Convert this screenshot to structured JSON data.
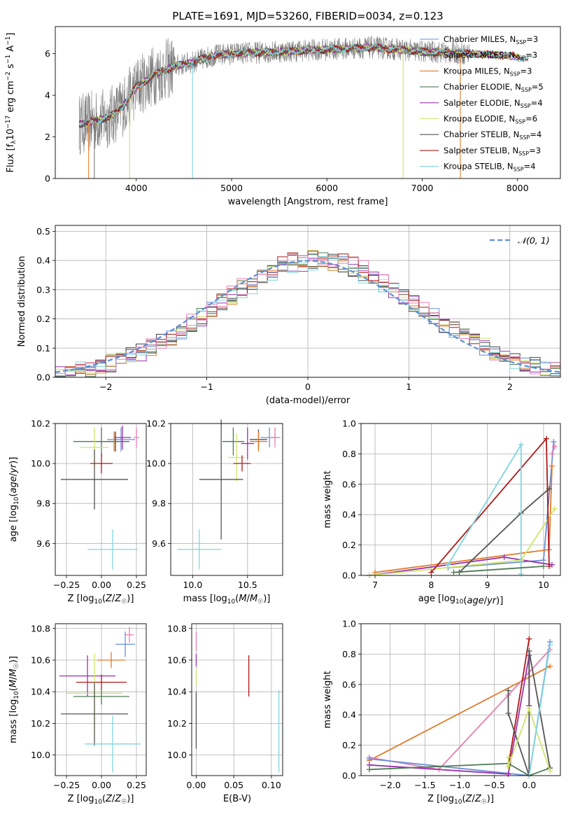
{
  "title": "PLATE=1691, MJD=53260, FIBERID=0034, z=0.123",
  "colors": {
    "Chabrier MILES": "#6a8fd8",
    "Salpeter MILES": "#404040",
    "Kroupa MILES": "#e07b2a",
    "Chabrier ELODIE": "#4f7a55",
    "Salpeter ELODIE": "#9b30b0",
    "Kroupa ELODIE": "#cfe56a",
    "Chabrier STELIB": "#555555",
    "Salpeter STELIB": "#b01818",
    "Kroupa STELIB": "#7fd6de",
    "extra": "#e67fb2",
    "gauss": "#5b8fd8",
    "grid": "#b0b0b0"
  },
  "chart_data": [
    {
      "id": "spectrum",
      "type": "line",
      "title": "PLATE=1691, MJD=53260, FIBERID=0034, z=0.123",
      "xlabel": "wavelength [Angstrom, rest frame]",
      "ylabel": "Flux [f_λ10^{-17} erg cm^{-2} s^{-1} A^{-1}]",
      "xlim": [
        3150,
        8450
      ],
      "ylim": [
        0,
        7.3
      ],
      "xticks": [
        "4000",
        "5000",
        "6000",
        "7000",
        "8000"
      ],
      "yticks": [
        "0",
        "2",
        "4",
        "6"
      ],
      "grid": false,
      "legend_position": "right",
      "legend": [
        {
          "model": "Chabrier MILES",
          "n": "3"
        },
        {
          "model": "Salpeter MILES",
          "n": "3"
        },
        {
          "model": "Kroupa MILES",
          "n": "3"
        },
        {
          "model": "Chabrier ELODIE",
          "n": "5"
        },
        {
          "model": "Salpeter ELODIE",
          "n": "4"
        },
        {
          "model": "Kroupa ELODIE",
          "n": "6"
        },
        {
          "model": "Chabrier STELIB",
          "n": "4"
        },
        {
          "model": "Salpeter STELIB",
          "n": "3"
        },
        {
          "model": "Kroupa STELIB",
          "n": "4"
        }
      ],
      "continuum": [
        [
          3400,
          2.6
        ],
        [
          3700,
          2.9
        ],
        [
          3800,
          3.2
        ],
        [
          3900,
          3.7
        ],
        [
          4000,
          4.4
        ],
        [
          4200,
          5.0
        ],
        [
          4400,
          5.4
        ],
        [
          4600,
          5.6
        ],
        [
          4800,
          5.9
        ],
        [
          5000,
          6.0
        ],
        [
          5500,
          6.1
        ],
        [
          6000,
          6.2
        ],
        [
          6500,
          6.3
        ],
        [
          7000,
          6.1
        ],
        [
          7500,
          6.0
        ],
        [
          7900,
          5.9
        ],
        [
          8200,
          5.7
        ]
      ],
      "absorption_lines": [
        [
          3500,
          0.9
        ],
        [
          3560,
          0.2
        ],
        [
          3930,
          0.5
        ],
        [
          4590,
          5.9
        ],
        [
          6800,
          6.0
        ],
        [
          7400,
          3.5
        ]
      ]
    },
    {
      "id": "residuals",
      "type": "histogram",
      "xlabel": "(data-model)/error",
      "ylabel": "Normed distribution",
      "xlim": [
        -2.5,
        2.5
      ],
      "ylim": [
        0,
        0.52
      ],
      "xticks": [
        "−2",
        "−1",
        "0",
        "1",
        "2"
      ],
      "yticks": [
        "0.0",
        "0.1",
        "0.2",
        "0.3",
        "0.4",
        "0.5"
      ],
      "grid": true,
      "legend_position": "top-right",
      "legend": [
        "𝒩(0, 1)"
      ],
      "bin_width": 0.1
    },
    {
      "id": "age-vs-Z",
      "type": "errorbar",
      "xlabel": "Z [log₁₀(Z/Z☉)]",
      "ylabel": "age  [log₁₀(age/yr)]",
      "xlim": [
        -0.33,
        0.32
      ],
      "ylim": [
        9.44,
        10.2
      ],
      "xticks": [
        "−0.25",
        "0.00",
        "0.25"
      ],
      "yticks": [
        "9.6",
        "9.8",
        "10.0",
        "10.2"
      ],
      "grid": true,
      "points": [
        {
          "model": "Chabrier MILES",
          "x": 0.14,
          "y": 10.12,
          "xerr": 0.1,
          "yerr": 0.06
        },
        {
          "model": "Salpeter MILES",
          "x": 0.1,
          "y": 10.11,
          "xerr": 0.07,
          "yerr": 0.05
        },
        {
          "model": "Kroupa MILES",
          "x": 0.09,
          "y": 10.11,
          "xerr": 0.1,
          "yerr": 0.05
        },
        {
          "model": "Chabrier ELODIE",
          "x": 0.0,
          "y": 10.11,
          "xerr": 0.2,
          "yerr": 0.07
        },
        {
          "model": "Salpeter ELODIE",
          "x": 0.15,
          "y": 10.13,
          "xerr": 0.06,
          "yerr": 0.06
        },
        {
          "model": "Kroupa ELODIE",
          "x": -0.05,
          "y": 10.08,
          "xerr": 0.1,
          "yerr": 0.1
        },
        {
          "model": "Chabrier STELIB",
          "x": -0.05,
          "y": 9.92,
          "xerr": 0.24,
          "yerr": 0.15
        },
        {
          "model": "Salpeter STELIB",
          "x": 0.0,
          "y": 10.0,
          "xerr": 0.08,
          "yerr": 0.05
        },
        {
          "model": "Kroupa STELIB",
          "x": 0.08,
          "y": 9.57,
          "xerr": 0.18,
          "yerr": 0.1
        },
        {
          "model": "extra",
          "x": 0.25,
          "y": 10.13,
          "xerr": 0.02,
          "yerr": 0.05
        }
      ]
    },
    {
      "id": "age-vs-mass",
      "type": "errorbar",
      "xlabel": "mass [log₁₀(M/M☉)]",
      "ylabel": "",
      "xlim": [
        9.8,
        10.82
      ],
      "ylim": [
        9.44,
        10.2
      ],
      "xticks": [
        "10.0",
        "10.5"
      ],
      "yticks": [
        "9.6",
        "9.8",
        "10.0",
        "10.2"
      ],
      "grid": true,
      "points": [
        {
          "model": "Chabrier MILES",
          "x": 10.7,
          "y": 10.13,
          "xerr": 0.08,
          "yerr": 0.05
        },
        {
          "model": "Salpeter MILES",
          "x": 10.6,
          "y": 10.12,
          "xerr": 0.08,
          "yerr": 0.05
        },
        {
          "model": "Kroupa MILES",
          "x": 10.6,
          "y": 10.11,
          "xerr": 0.08,
          "yerr": 0.05
        },
        {
          "model": "Chabrier ELODIE",
          "x": 10.37,
          "y": 10.11,
          "xerr": 0.1,
          "yerr": 0.07
        },
        {
          "model": "Salpeter ELODIE",
          "x": 10.5,
          "y": 10.1,
          "xerr": 0.06,
          "yerr": 0.08
        },
        {
          "model": "Kroupa ELODIE",
          "x": 10.4,
          "y": 10.03,
          "xerr": 0.08,
          "yerr": 0.12
        },
        {
          "model": "Chabrier STELIB",
          "x": 10.26,
          "y": 9.92,
          "xerr": 0.2,
          "yerr": 0.3
        },
        {
          "model": "Salpeter STELIB",
          "x": 10.45,
          "y": 10.0,
          "xerr": 0.08,
          "yerr": 0.04
        },
        {
          "model": "Kroupa STELIB",
          "x": 10.06,
          "y": 9.57,
          "xerr": 0.2,
          "yerr": 0.1
        },
        {
          "model": "extra",
          "x": 10.75,
          "y": 10.13,
          "xerr": 0.05,
          "yerr": 0.05
        }
      ]
    },
    {
      "id": "weight-vs-age",
      "type": "line",
      "xlabel": "age  [log₁₀(age/yr)]",
      "ylabel": "mass weight",
      "xlim": [
        6.75,
        10.3
      ],
      "ylim": [
        0,
        1.0
      ],
      "xticks": [
        "7",
        "8",
        "9",
        "10"
      ],
      "yticks": [
        "0.0",
        "0.2",
        "0.4",
        "0.6",
        "0.8",
        "1.0"
      ],
      "grid": true,
      "series": [
        {
          "model": "Chabrier MILES",
          "points": [
            [
              8.3,
              0.05
            ],
            [
              10.0,
              0.1
            ],
            [
              10.18,
              0.88
            ]
          ]
        },
        {
          "model": "Kroupa MILES",
          "points": [
            [
              7.0,
              0.02
            ],
            [
              10.1,
              0.17
            ],
            [
              10.15,
              0.72
            ]
          ]
        },
        {
          "model": "Salpeter ELODIE",
          "points": [
            [
              6.9,
              0.0
            ],
            [
              9.3,
              0.12
            ],
            [
              10.15,
              0.07
            ]
          ]
        },
        {
          "model": "Kroupa ELODIE",
          "points": [
            [
              6.9,
              0.0
            ],
            [
              9.6,
              0.1
            ],
            [
              10.2,
              0.44
            ]
          ]
        },
        {
          "model": "Chabrier STELIB",
          "points": [
            [
              8.5,
              0.02
            ],
            [
              9.6,
              0.41
            ],
            [
              10.1,
              0.57
            ]
          ]
        },
        {
          "model": "Salpeter STELIB",
          "points": [
            [
              8.0,
              0.02
            ],
            [
              10.05,
              0.9
            ],
            [
              10.1,
              0.06
            ]
          ]
        },
        {
          "model": "Kroupa STELIB",
          "points": [
            [
              8.3,
              0.07
            ],
            [
              9.6,
              0.86
            ],
            [
              9.6,
              0.01
            ]
          ]
        },
        {
          "model": "Chabrier ELODIE",
          "points": [
            [
              8.4,
              0.02
            ],
            [
              10.0,
              0.06
            ]
          ]
        },
        {
          "model": "extra",
          "points": [
            [
              10.2,
              0.85
            ],
            [
              10.15,
              0.8
            ]
          ]
        }
      ]
    },
    {
      "id": "mass-vs-Z",
      "type": "errorbar",
      "xlabel": "Z [log₁₀(Z/Z☉)]",
      "ylabel": "mass [log₁₀(M/M☉)]",
      "xlim": [
        -0.33,
        0.32
      ],
      "ylim": [
        9.87,
        10.83
      ],
      "xticks": [
        "−0.25",
        "0.00",
        "0.25"
      ],
      "yticks": [
        "10.0",
        "10.2",
        "10.4",
        "10.6",
        "10.8"
      ],
      "grid": true,
      "points": [
        {
          "model": "extra",
          "x": 0.2,
          "y": 10.76,
          "xerr": 0.03,
          "yerr": 0.05
        },
        {
          "model": "Chabrier MILES",
          "x": 0.17,
          "y": 10.7,
          "xerr": 0.07,
          "yerr": 0.08
        },
        {
          "model": "Kroupa MILES",
          "x": 0.07,
          "y": 10.6,
          "xerr": 0.1,
          "yerr": 0.05
        },
        {
          "model": "Salpeter ELODIE",
          "x": -0.1,
          "y": 10.5,
          "xerr": 0.2,
          "yerr": 0.13
        },
        {
          "model": "Salpeter STELIB",
          "x": 0.0,
          "y": 10.46,
          "xerr": 0.18,
          "yerr": 0.05
        },
        {
          "model": "Kroupa ELODIE",
          "x": -0.05,
          "y": 10.39,
          "xerr": 0.2,
          "yerr": 0.25
        },
        {
          "model": "Chabrier ELODIE",
          "x": 0.0,
          "y": 10.37,
          "xerr": 0.2,
          "yerr": 0.05
        },
        {
          "model": "Chabrier STELIB",
          "x": -0.05,
          "y": 10.26,
          "xerr": 0.24,
          "yerr": 0.2
        },
        {
          "model": "Kroupa STELIB",
          "x": 0.08,
          "y": 10.07,
          "xerr": 0.2,
          "yerr": 0.18
        }
      ]
    },
    {
      "id": "mass-vs-EBV",
      "type": "errorbar",
      "xlabel": "E(B-V)",
      "ylabel": "",
      "xlim": [
        -0.006,
        0.115
      ],
      "ylim": [
        9.87,
        10.83
      ],
      "xticks": [
        "0.00",
        "0.05",
        "0.10"
      ],
      "yticks": [
        "10.0",
        "10.2",
        "10.4",
        "10.6",
        "10.8"
      ],
      "grid": true,
      "points": [
        {
          "model": "extra",
          "x": 0.0,
          "y": 10.72,
          "xerr": 0,
          "yerr": 0.06
        },
        {
          "model": "Salpeter ELODIE",
          "x": 0.0,
          "y": 10.6,
          "xerr": 0,
          "yerr": 0.04
        },
        {
          "model": "Kroupa ELODIE",
          "x": 0.0,
          "y": 10.49,
          "xerr": 0,
          "yerr": 0.05
        },
        {
          "model": "Chabrier STELIB",
          "x": 0.0,
          "y": 10.22,
          "xerr": 0,
          "yerr": 0.18
        },
        {
          "model": "Salpeter STELIB",
          "x": 0.07,
          "y": 10.5,
          "xerr": 0,
          "yerr": 0.13
        },
        {
          "model": "Kroupa STELIB",
          "x": 0.11,
          "y": 10.15,
          "xerr": 0,
          "yerr": 0.26
        }
      ]
    },
    {
      "id": "weight-vs-Z",
      "type": "line",
      "xlabel": "Z [log₁₀(Z/Z☉)]",
      "ylabel": "mass weight",
      "xlim": [
        -2.42,
        0.45
      ],
      "ylim": [
        0,
        1.0
      ],
      "xticks": [
        "−2.0",
        "−1.5",
        "−1.0",
        "−0.5",
        "0.0"
      ],
      "yticks": [
        "0.0",
        "0.2",
        "0.4",
        "0.6",
        "0.8",
        "1.0"
      ],
      "grid": true,
      "series": [
        {
          "model": "Kroupa MILES",
          "points": [
            [
              -2.3,
              0.1
            ],
            [
              0.3,
              0.72
            ]
          ]
        },
        {
          "model": "extra",
          "points": [
            [
              -2.3,
              0.12
            ],
            [
              -1.3,
              0.04
            ],
            [
              -0.3,
              0.53
            ],
            [
              0.3,
              0.83
            ]
          ]
        },
        {
          "model": "Chabrier MILES",
          "points": [
            [
              -2.3,
              0.11
            ],
            [
              0.0,
              0.0
            ],
            [
              0.3,
              0.88
            ]
          ]
        },
        {
          "model": "Salpeter ELODIE",
          "points": [
            [
              -2.3,
              0.07
            ],
            [
              -0.3,
              0.01
            ],
            [
              0.0,
              0.79
            ],
            [
              0.0,
              0.46
            ]
          ]
        },
        {
          "model": "Chabrier ELODIE",
          "points": [
            [
              -2.3,
              0.04
            ],
            [
              -0.3,
              0.08
            ],
            [
              0.0,
              0.0
            ],
            [
              0.3,
              0.05
            ]
          ]
        },
        {
          "model": "Salpeter STELIB",
          "points": [
            [
              -0.3,
              0.06
            ],
            [
              0.0,
              0.9
            ]
          ]
        },
        {
          "model": "Chabrier STELIB",
          "points": [
            [
              -0.3,
              0.56
            ],
            [
              -0.3,
              0.41
            ],
            [
              0.0,
              0.0
            ],
            [
              0.0,
              0.82
            ],
            [
              0.3,
              0.05
            ]
          ]
        },
        {
          "model": "Kroupa ELODIE",
          "points": [
            [
              -0.3,
              0.12
            ],
            [
              -0.3,
              0.06
            ],
            [
              0.0,
              0.44
            ],
            [
              0.3,
              0.03
            ]
          ]
        },
        {
          "model": "Kroupa STELIB",
          "points": [
            [
              0.0,
              0.0
            ],
            [
              0.3,
              0.86
            ]
          ]
        }
      ]
    }
  ]
}
